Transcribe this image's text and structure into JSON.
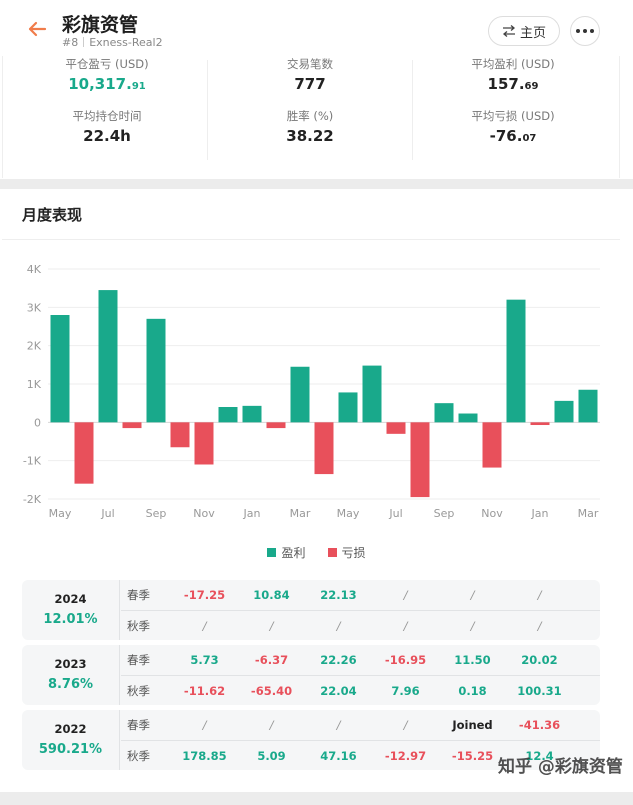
{
  "header": {
    "title": "彩旗资管",
    "rank": "#8",
    "account": "Exness-Real2",
    "home_label": "主页"
  },
  "stats": [
    {
      "label": "平仓盈亏 (USD)",
      "value_main": "10,317.",
      "value_small": "91",
      "green": true
    },
    {
      "label": "交易笔数",
      "value_main": "777",
      "value_small": "",
      "green": false
    },
    {
      "label": "平均盈利 (USD)",
      "value_main": "157.",
      "value_small": "69",
      "green": false
    },
    {
      "label": "平均持仓时间",
      "value_main": "22.4h",
      "value_small": "",
      "green": false
    },
    {
      "label": "胜率 (%)",
      "value_main": "38.22",
      "value_small": "",
      "green": false
    },
    {
      "label": "平均亏损 (USD)",
      "value_main": "-76.",
      "value_small": "07",
      "green": false
    }
  ],
  "section_title": "月度表现",
  "colors": {
    "profit": "#19a98b",
    "loss": "#e8505b"
  },
  "chart_data": {
    "type": "bar",
    "yticks": [
      "4K",
      "3K",
      "2K",
      "1K",
      "0",
      "-1K",
      "-2K"
    ],
    "ylim": [
      -2000,
      4000
    ],
    "xtick_labels": [
      "May",
      "Jul",
      "Sep",
      "Nov",
      "Jan",
      "Mar",
      "May",
      "Jul",
      "Sep",
      "Nov",
      "Jan",
      "Mar"
    ],
    "categories": [
      "May",
      "Jun",
      "Jul",
      "Aug",
      "Sep",
      "Oct",
      "Nov",
      "Dec",
      "Jan",
      "Feb",
      "Mar",
      "Apr",
      "May",
      "Jun",
      "Jul",
      "Aug",
      "Sep",
      "Oct",
      "Nov",
      "Dec",
      "Jan",
      "Feb",
      "Mar"
    ],
    "series": [
      {
        "name": "盈利",
        "values": [
          2800,
          null,
          3450,
          null,
          2700,
          null,
          null,
          400,
          430,
          null,
          1450,
          null,
          780,
          1480,
          null,
          null,
          500,
          230,
          null,
          3200,
          null,
          560,
          850
        ]
      },
      {
        "name": "亏损",
        "values": [
          null,
          -1600,
          null,
          -150,
          null,
          -650,
          -1100,
          null,
          null,
          -150,
          null,
          -1350,
          null,
          null,
          -300,
          -1950,
          null,
          null,
          -1180,
          null,
          -70,
          null,
          null
        ]
      }
    ],
    "legend": [
      "盈利",
      "亏损"
    ]
  },
  "years": [
    {
      "year": "2024",
      "pct": "12.01%",
      "rows": [
        {
          "season": "春季",
          "values": [
            {
              "t": "-17.25",
              "c": "neg"
            },
            {
              "t": "10.84",
              "c": "pos"
            },
            {
              "t": "22.13",
              "c": "pos"
            },
            {
              "t": "/",
              "c": "na"
            },
            {
              "t": "/",
              "c": "na"
            },
            {
              "t": "/",
              "c": "na"
            }
          ]
        },
        {
          "season": "秋季",
          "values": [
            {
              "t": "/",
              "c": "na"
            },
            {
              "t": "/",
              "c": "na"
            },
            {
              "t": "/",
              "c": "na"
            },
            {
              "t": "/",
              "c": "na"
            },
            {
              "t": "/",
              "c": "na"
            },
            {
              "t": "/",
              "c": "na"
            }
          ]
        }
      ]
    },
    {
      "year": "2023",
      "pct": "8.76%",
      "rows": [
        {
          "season": "春季",
          "values": [
            {
              "t": "5.73",
              "c": "pos"
            },
            {
              "t": "-6.37",
              "c": "neg"
            },
            {
              "t": "22.26",
              "c": "pos"
            },
            {
              "t": "-16.95",
              "c": "neg"
            },
            {
              "t": "11.50",
              "c": "pos"
            },
            {
              "t": "20.02",
              "c": "pos"
            }
          ]
        },
        {
          "season": "秋季",
          "values": [
            {
              "t": "-11.62",
              "c": "neg"
            },
            {
              "t": "-65.40",
              "c": "neg"
            },
            {
              "t": "22.04",
              "c": "pos"
            },
            {
              "t": "7.96",
              "c": "pos"
            },
            {
              "t": "0.18",
              "c": "pos"
            },
            {
              "t": "100.31",
              "c": "pos"
            }
          ]
        }
      ]
    },
    {
      "year": "2022",
      "pct": "590.21%",
      "rows": [
        {
          "season": "春季",
          "values": [
            {
              "t": "/",
              "c": "na"
            },
            {
              "t": "/",
              "c": "na"
            },
            {
              "t": "/",
              "c": "na"
            },
            {
              "t": "/",
              "c": "na"
            },
            {
              "t": "Joined",
              "c": "plain"
            },
            {
              "t": "-41.36",
              "c": "neg"
            }
          ]
        },
        {
          "season": "秋季",
          "values": [
            {
              "t": "178.85",
              "c": "pos"
            },
            {
              "t": "5.09",
              "c": "pos"
            },
            {
              "t": "47.16",
              "c": "pos"
            },
            {
              "t": "-12.97",
              "c": "neg"
            },
            {
              "t": "-15.25",
              "c": "neg"
            },
            {
              "t": "12.4",
              "c": "pos"
            }
          ]
        }
      ]
    }
  ],
  "watermark": "知乎 @彩旗资管"
}
